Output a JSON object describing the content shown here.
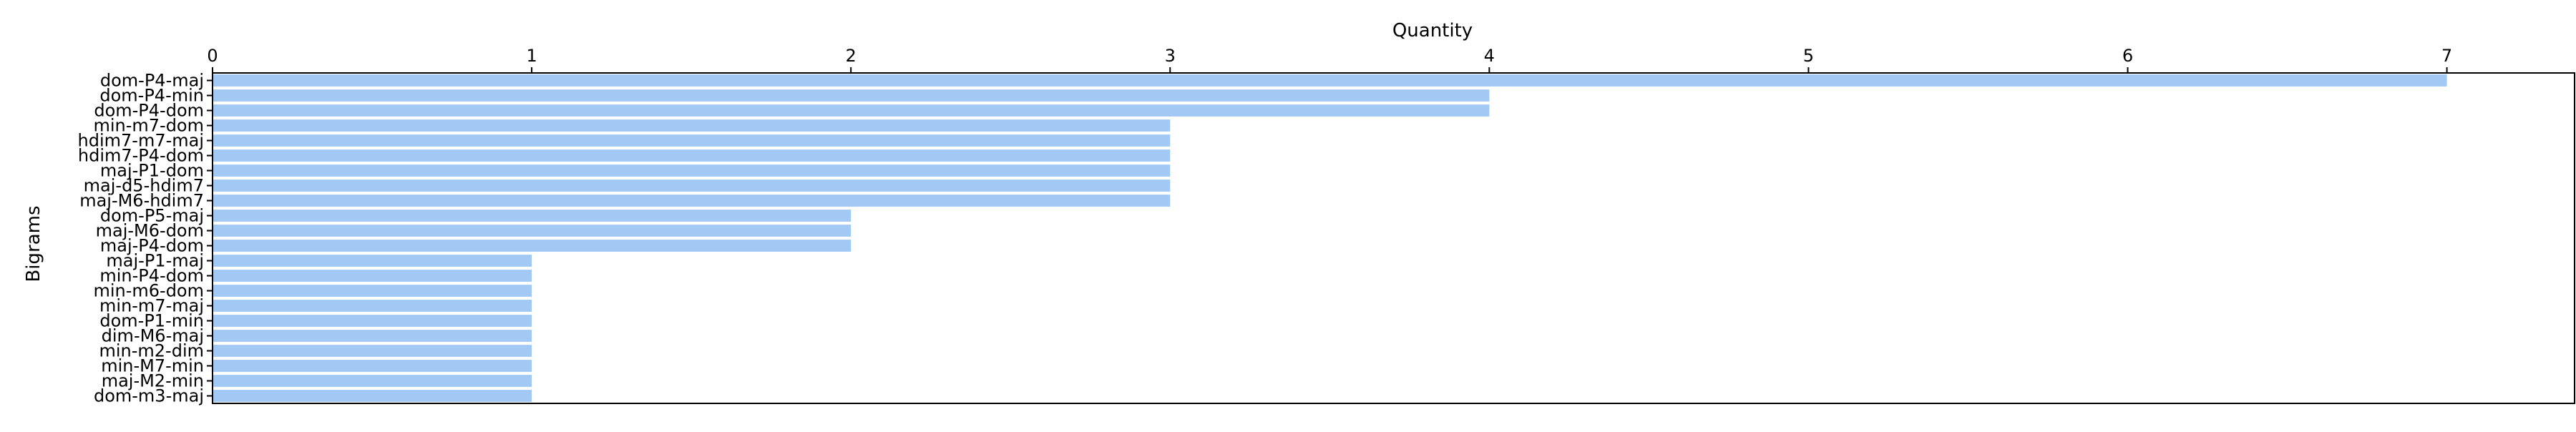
{
  "chart_data": {
    "type": "bar",
    "orientation": "horizontal",
    "xlabel": "Quantity",
    "ylabel": "Bigrams",
    "xaxis_position": "top",
    "xlim": [
      0,
      7.4
    ],
    "xticks": [
      0,
      1,
      2,
      3,
      4,
      5,
      6,
      7
    ],
    "grid": false,
    "bar_color": "#a1c9f4",
    "categories": [
      "dom-P4-maj",
      "dom-P4-min",
      "dom-P4-dom",
      "min-m7-dom",
      "hdim7-m7-maj",
      "hdim7-P4-dom",
      "maj-P1-dom",
      "maj-d5-hdim7",
      "maj-M6-hdim7",
      "dom-P5-maj",
      "maj-M6-dom",
      "maj-P4-dom",
      "maj-P1-maj",
      "min-P4-dom",
      "min-m6-dom",
      "min-m7-maj",
      "dom-P1-min",
      "dim-M6-maj",
      "min-m2-dim",
      "min-M7-min",
      "maj-M2-min",
      "dom-m3-maj"
    ],
    "values": [
      7,
      4,
      4,
      3,
      3,
      3,
      3,
      3,
      3,
      2,
      2,
      2,
      1,
      1,
      1,
      1,
      1,
      1,
      1,
      1,
      1,
      1
    ]
  }
}
